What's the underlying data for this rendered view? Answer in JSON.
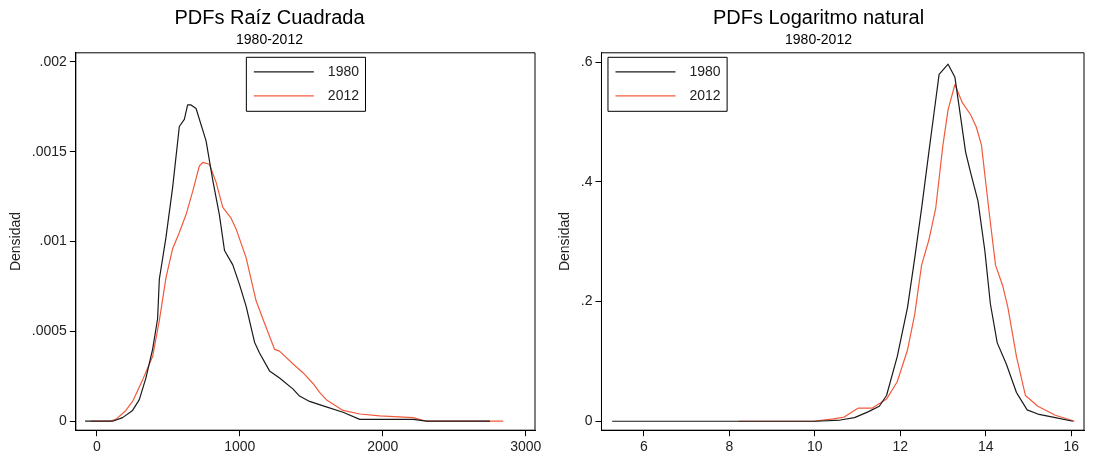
{
  "chart_data": [
    {
      "type": "line",
      "title": "PDFs Raíz Cuadrada",
      "subtitle": "1980-2012",
      "ylabel": "Densidad",
      "xlim": [
        -147,
        3065
      ],
      "xticks": [
        0,
        1000,
        2000,
        3000
      ],
      "ylim": [
        -5e-05,
        0.00205
      ],
      "yticks": [
        {
          "value": 0,
          "label": "0"
        },
        {
          "value": 0.0005,
          "label": ".0005"
        },
        {
          "value": 0.001,
          "label": ".001"
        },
        {
          "value": 0.0015,
          "label": ".0015"
        },
        {
          "value": 0.002,
          "label": ".002"
        }
      ],
      "grid": false,
      "legend": "top",
      "marker": "none",
      "line_style": "solid",
      "series": [
        {
          "name": "1980",
          "color": "#1a1a1a",
          "x": [
            -82,
            110,
            180,
            250,
            297,
            343,
            390,
            425,
            437,
            483,
            530,
            577,
            612,
            635,
            659,
            694,
            764,
            811,
            857,
            893,
            951,
            998,
            1044,
            1103,
            1138,
            1208,
            1278,
            1371,
            1418,
            1488,
            1605,
            1722,
            1839,
            1956,
            2072,
            2213,
            2306,
            2610,
            2750
          ],
          "values": [
            0,
            0,
            2e-05,
            6e-05,
            0.00012,
            0.00024,
            0.0004,
            0.00057,
            0.00079,
            0.00102,
            0.0013,
            0.00164,
            0.00168,
            0.00176,
            0.00176,
            0.00174,
            0.00156,
            0.00134,
            0.00115,
            0.00095,
            0.00087,
            0.00076,
            0.00064,
            0.00044,
            0.00038,
            0.00028,
            0.00024,
            0.00018,
            0.00014,
            0.00011,
            8e-05,
            5e-05,
            1e-05,
            1e-05,
            1e-05,
            1e-05,
            0,
            0,
            0
          ]
        },
        {
          "name": "2012",
          "color": "#f25a3c",
          "x": [
            -42,
            86,
            133,
            203,
            250,
            320,
            390,
            437,
            484,
            530,
            577,
            624,
            671,
            717,
            741,
            787,
            834,
            881,
            939,
            974,
            1044,
            1114,
            1161,
            1243,
            1278,
            1371,
            1442,
            1512,
            1558,
            1605,
            1722,
            1839,
            1979,
            2213,
            2306,
            2540,
            2843
          ],
          "values": [
            0,
            0,
            1e-05,
            6e-05,
            0.00011,
            0.00023,
            0.00036,
            0.00056,
            0.0008,
            0.00096,
            0.00105,
            0.00115,
            0.00128,
            0.00142,
            0.00144,
            0.00143,
            0.00133,
            0.00119,
            0.00113,
            0.00107,
            0.00091,
            0.00067,
            0.00057,
            0.0004,
            0.00039,
            0.00032,
            0.00027,
            0.00021,
            0.00016,
            0.00012,
            6e-05,
            4e-05,
            3e-05,
            2e-05,
            0,
            0,
            0
          ]
        }
      ]
    },
    {
      "type": "line",
      "title": "PDFs Logaritmo natural",
      "subtitle": "1980-2012",
      "ylabel": "Densidad",
      "xlim": [
        5.01,
        16.3
      ],
      "xticks": [
        6,
        8,
        10,
        12,
        14,
        16
      ],
      "ylim": [
        -0.015,
        0.616
      ],
      "yticks": [
        {
          "value": 0,
          "label": "0"
        },
        {
          "value": 0.2,
          "label": ".2"
        },
        {
          "value": 0.4,
          "label": ".4"
        },
        {
          "value": 0.6,
          "label": ".6"
        }
      ],
      "grid": false,
      "legend": "top left",
      "marker": "none",
      "line_style": "solid",
      "series": [
        {
          "name": "1980",
          "color": "#1a1a1a",
          "x": [
            5.26,
            6.74,
            10.03,
            10.6,
            10.93,
            11.26,
            11.51,
            11.68,
            11.93,
            12.17,
            12.34,
            12.5,
            12.67,
            12.79,
            12.91,
            13.12,
            13.28,
            13.41,
            13.53,
            13.65,
            13.82,
            13.98,
            14.11,
            14.27,
            14.48,
            14.72,
            14.97,
            15.22,
            15.63,
            16.04
          ],
          "values": [
            0,
            0,
            0,
            0.002,
            0.006,
            0.016,
            0.025,
            0.043,
            0.108,
            0.19,
            0.273,
            0.356,
            0.45,
            0.515,
            0.58,
            0.597,
            0.575,
            0.51,
            0.45,
            0.415,
            0.368,
            0.285,
            0.196,
            0.131,
            0.096,
            0.048,
            0.019,
            0.012,
            0.006,
            0
          ]
        },
        {
          "name": "2012",
          "color": "#f25a3c",
          "x": [
            8.22,
            9.95,
            10.44,
            10.69,
            11.02,
            11.35,
            11.68,
            11.93,
            12.17,
            12.34,
            12.5,
            12.67,
            12.83,
            13.0,
            13.12,
            13.28,
            13.45,
            13.65,
            13.78,
            13.9,
            14.07,
            14.23,
            14.4,
            14.52,
            14.72,
            14.93,
            15.22,
            15.63,
            16.08
          ],
          "values": [
            0,
            0,
            0.004,
            0.007,
            0.022,
            0.022,
            0.037,
            0.066,
            0.119,
            0.179,
            0.261,
            0.303,
            0.356,
            0.462,
            0.521,
            0.563,
            0.533,
            0.512,
            0.492,
            0.462,
            0.356,
            0.261,
            0.226,
            0.19,
            0.108,
            0.043,
            0.025,
            0.01,
            0
          ]
        }
      ]
    }
  ]
}
